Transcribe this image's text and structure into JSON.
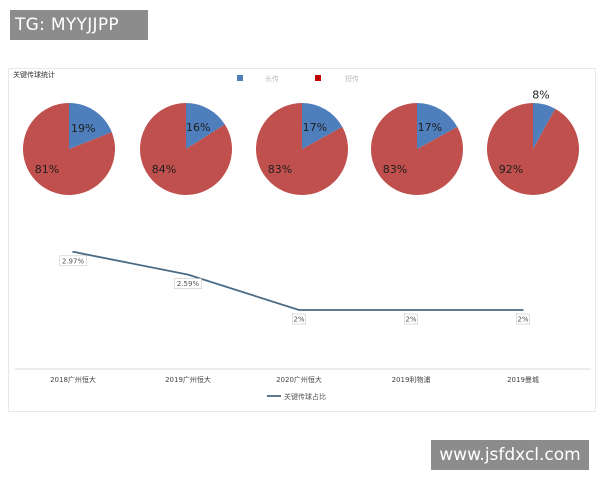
{
  "header": {
    "tag": "TG: MYYJJPP"
  },
  "footer": {
    "watermark": "www.jsfdxcl.com"
  },
  "colors": {
    "pie_blue": "#4f7ebc",
    "pie_red": "#c0504d",
    "line": "#4a6b85"
  },
  "chart_data": [
    {
      "type": "pie",
      "title": "关键传球统计",
      "legend": [
        "长传",
        "短传"
      ],
      "legend_placement": "top-center",
      "pies": [
        {
          "category": "2018广州恒大",
          "slices": [
            {
              "name": "长传",
              "value": 19,
              "label": "19%"
            },
            {
              "name": "短传",
              "value": 81,
              "label": "81%"
            }
          ]
        },
        {
          "category": "2019广州恒大",
          "slices": [
            {
              "name": "长传",
              "value": 16,
              "label": "16%"
            },
            {
              "name": "短传",
              "value": 84,
              "label": "84%"
            }
          ]
        },
        {
          "category": "2020广州恒大",
          "slices": [
            {
              "name": "长传",
              "value": 17,
              "label": "17%"
            },
            {
              "name": "短传",
              "value": 83,
              "label": "83%"
            }
          ]
        },
        {
          "category": "2019利物浦",
          "slices": [
            {
              "name": "长传",
              "value": 17,
              "label": "17%"
            },
            {
              "name": "短传",
              "value": 83,
              "label": "83%"
            }
          ]
        },
        {
          "category": "2019曼城",
          "slices": [
            {
              "name": "长传",
              "value": 8,
              "label": "8%"
            },
            {
              "name": "短传",
              "value": 92,
              "label": "92%"
            }
          ]
        }
      ]
    },
    {
      "type": "line",
      "categories": [
        "2018广州恒大",
        "2019广州恒大",
        "2020广州恒大",
        "2019利物浦",
        "2019曼城"
      ],
      "series": [
        {
          "name": "关键传球占比",
          "values": [
            2.97,
            2.59,
            2.0,
            2.0,
            2.0
          ],
          "labels": [
            "2.97%",
            "2.59%",
            "2%",
            "2%",
            "2%"
          ]
        }
      ],
      "legend_placement": "bottom-center",
      "grid": false
    }
  ]
}
